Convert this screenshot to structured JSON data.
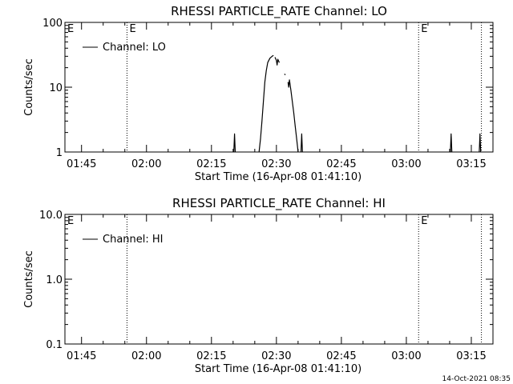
{
  "footer": {
    "timestamp": "14-Oct-2021 08:35"
  },
  "chart_data": [
    {
      "type": "line",
      "title": "RHESSI PARTICLE_RATE Channel: LO",
      "xlabel": "Start Time (16-Apr-08 01:41:10)",
      "ylabel": "Counts/sec",
      "yscale": "log",
      "ylim": [
        1,
        100
      ],
      "yticks": [
        1,
        10,
        100
      ],
      "ytick_labels": [
        "1",
        "10",
        "100"
      ],
      "x_unit": "minutes",
      "xlim": [
        "01:41:10",
        "03:20:00"
      ],
      "xticks": [
        "01:45",
        "02:00",
        "02:15",
        "02:30",
        "02:45",
        "03:00",
        "03:15"
      ],
      "legend": {
        "entries": [
          "Channel: LO"
        ],
        "position": "top-left"
      },
      "event_markers": [
        {
          "time": "01:55:30",
          "label": "E"
        },
        {
          "time": "03:02:50",
          "label": "E"
        },
        {
          "time": "03:17:20",
          "label": ""
        }
      ],
      "corner_marker": "E",
      "series": [
        {
          "name": "Channel: LO",
          "segments": [
            [
              [
                "02:20:10",
                1
              ],
              [
                "02:20:20",
                1.9
              ],
              [
                "02:20:30",
                1
              ]
            ],
            [
              [
                "02:26:00",
                1
              ],
              [
                "02:26:20",
                1.6
              ],
              [
                "02:26:40",
                3
              ],
              [
                "02:27:00",
                6
              ],
              [
                "02:27:20",
                12
              ],
              [
                "02:27:40",
                18
              ],
              [
                "02:28:00",
                24
              ],
              [
                "02:28:30",
                28
              ],
              [
                "02:29:00",
                30
              ],
              [
                "02:29:20",
                31
              ]
            ],
            [
              [
                "02:29:40",
                29
              ],
              [
                "02:30:00",
                26
              ],
              [
                "02:30:10",
                22
              ],
              [
                "02:30:20",
                27
              ],
              [
                "02:30:40",
                24
              ]
            ],
            [
              [
                "02:31:50",
                16
              ],
              [
                "02:32:05",
                15.5
              ]
            ],
            [
              [
                "02:32:40",
                12
              ],
              [
                "02:32:50",
                10
              ],
              [
                "02:33:00",
                13
              ],
              [
                "02:33:20",
                9
              ],
              [
                "02:33:40",
                6
              ],
              [
                "02:34:00",
                4
              ],
              [
                "02:34:20",
                2.5
              ],
              [
                "02:34:40",
                1.6
              ],
              [
                "02:35:00",
                1
              ]
            ],
            [
              [
                "02:35:40",
                1
              ],
              [
                "02:35:50",
                1.9
              ],
              [
                "02:36:00",
                1
              ]
            ],
            [
              [
                "03:10:10",
                1
              ],
              [
                "03:10:20",
                1.9
              ],
              [
                "03:10:30",
                1
              ]
            ],
            [
              [
                "03:16:50",
                1
              ],
              [
                "03:17:00",
                1.9
              ],
              [
                "03:17:10",
                1
              ]
            ]
          ]
        }
      ]
    },
    {
      "type": "line",
      "title": "RHESSI PARTICLE_RATE Channel: HI",
      "xlabel": "Start Time (16-Apr-08 01:41:10)",
      "ylabel": "Counts/sec",
      "yscale": "log",
      "ylim": [
        0.1,
        10
      ],
      "yticks": [
        0.1,
        1,
        10
      ],
      "ytick_labels": [
        "0.1",
        "1.0",
        "10.0"
      ],
      "x_unit": "minutes",
      "xlim": [
        "01:41:10",
        "03:20:00"
      ],
      "xticks": [
        "01:45",
        "02:00",
        "02:15",
        "02:30",
        "02:45",
        "03:00",
        "03:15"
      ],
      "legend": {
        "entries": [
          "Channel: HI"
        ],
        "position": "top-left"
      },
      "event_markers": [
        {
          "time": "01:55:30",
          "label": ""
        },
        {
          "time": "03:02:50",
          "label": "E"
        },
        {
          "time": "03:17:20",
          "label": ""
        }
      ],
      "corner_marker": "E",
      "series": [
        {
          "name": "Channel: HI",
          "segments": []
        }
      ]
    }
  ]
}
